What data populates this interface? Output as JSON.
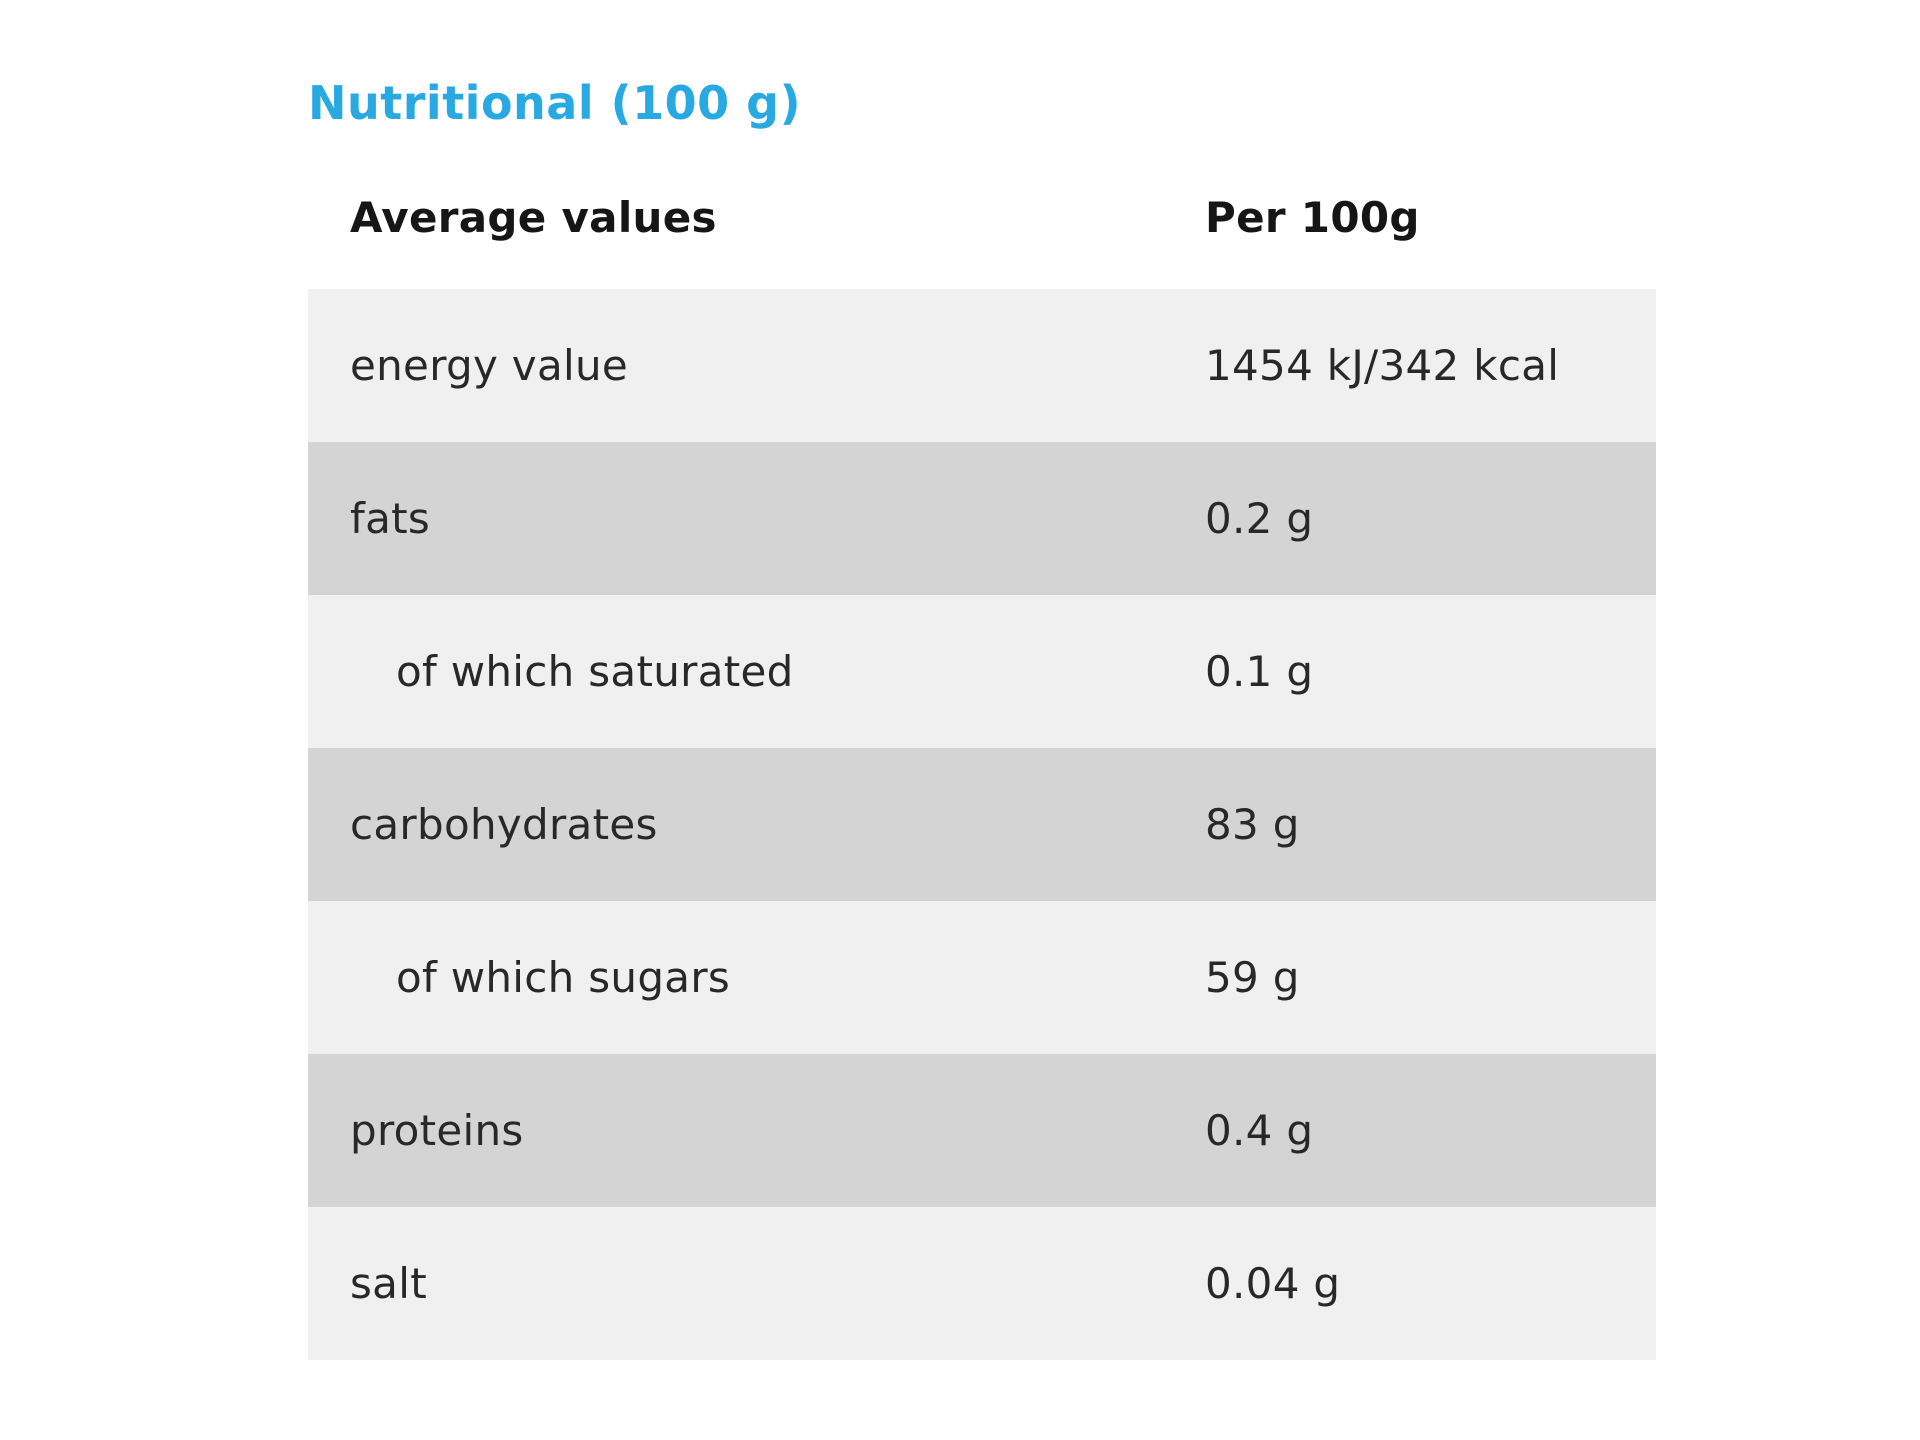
{
  "page": {
    "title": "Nutritional (100 g)",
    "accent_color": "#29a9e2"
  },
  "table": {
    "columns": [
      "Average values",
      "Per 100g"
    ],
    "colors": {
      "row_light": "#f0f0f0",
      "row_dark": "#d4d4d4",
      "header_text": "#161616",
      "body_text": "#282828"
    },
    "rows": [
      {
        "label": "energy value",
        "value": "1454 kJ/342 kcal",
        "indent": false
      },
      {
        "label": "fats",
        "value": "0.2 g",
        "indent": false
      },
      {
        "label": "of which saturated",
        "value": "0.1 g",
        "indent": true
      },
      {
        "label": "carbohydrates",
        "value": "83 g",
        "indent": false
      },
      {
        "label": "of which sugars",
        "value": "59 g",
        "indent": true
      },
      {
        "label": "proteins",
        "value": "0.4 g",
        "indent": false
      },
      {
        "label": "salt",
        "value": "0.04 g",
        "indent": false
      }
    ]
  }
}
